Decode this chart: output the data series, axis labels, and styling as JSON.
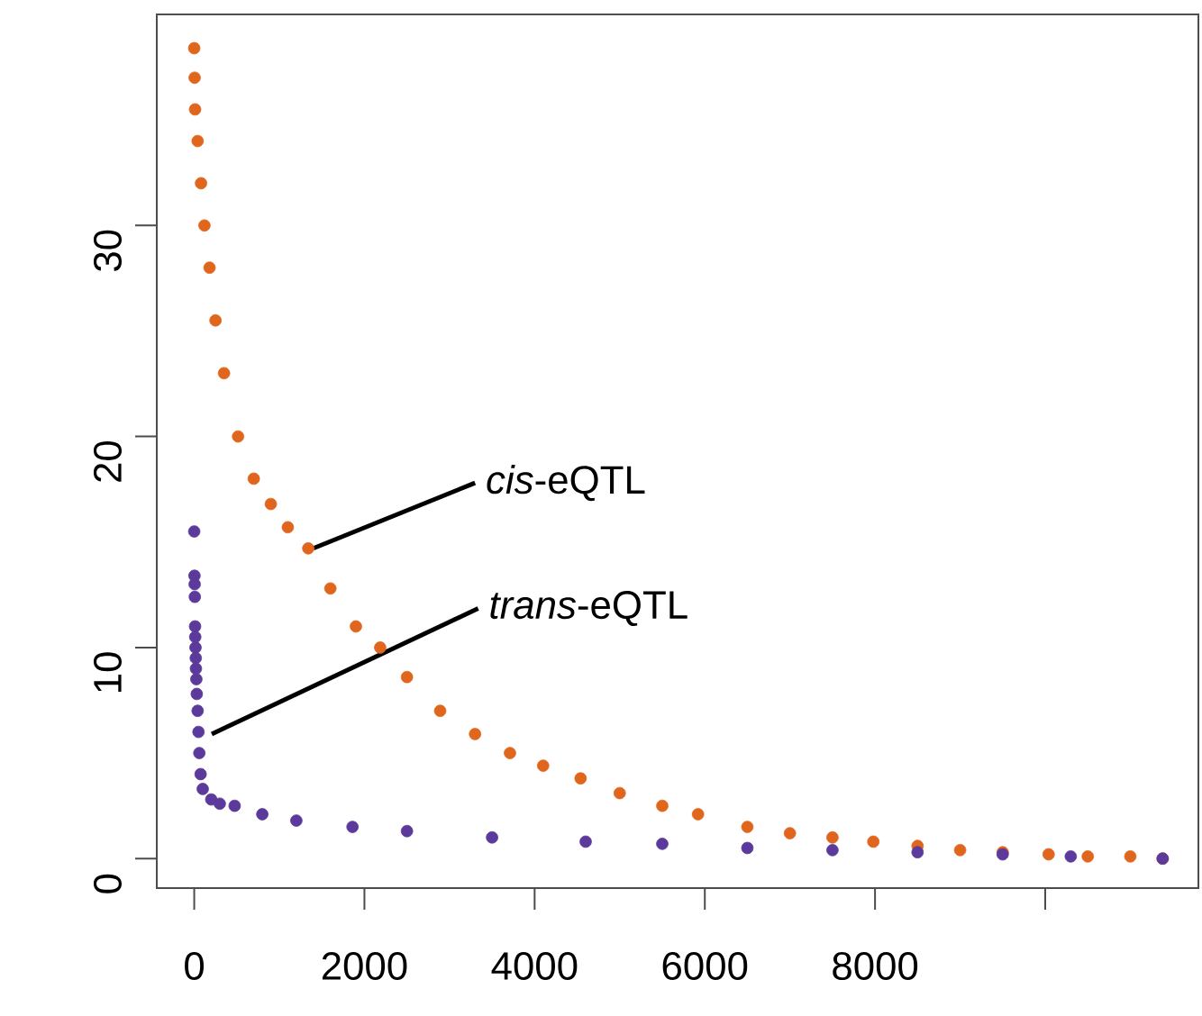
{
  "chart_data": {
    "type": "scatter",
    "marker": "circle",
    "xlim": [
      -440,
      11800
    ],
    "ylim": [
      -1.4,
      40
    ],
    "xticks": [
      0,
      2000,
      4000,
      6000,
      8000,
      {
        "value": 10000,
        "label": null
      }
    ],
    "yticks": [
      0,
      10,
      20,
      30
    ],
    "series": [
      {
        "color": "#e0661e",
        "x": [
          0,
          5,
          10,
          40,
          80,
          120,
          180,
          250,
          350,
          515,
          700,
          900,
          1100,
          1340,
          1600,
          1900,
          2185,
          2500,
          2890,
          3300,
          3710,
          4100,
          4540,
          5000,
          5500,
          5920,
          6500,
          7000,
          7500,
          7980,
          8500,
          9000,
          9500,
          10040,
          10500,
          11000,
          11380
        ],
        "values": [
          38.4,
          37,
          35.5,
          34,
          32,
          30,
          28,
          25.5,
          23,
          20,
          18,
          16.8,
          15.7,
          14.7,
          12.8,
          11,
          10,
          8.6,
          7,
          5.9,
          5,
          4.4,
          3.8,
          3.1,
          2.5,
          2.1,
          1.5,
          1.2,
          1,
          0.8,
          0.6,
          0.4,
          0.3,
          0.2,
          0.1,
          0.1,
          0
        ]
      },
      {
        "color": "#5b3a9b",
        "x": [
          0,
          3,
          5,
          7,
          10,
          12,
          15,
          18,
          20,
          25,
          30,
          40,
          50,
          60,
          75,
          100,
          200,
          300,
          475,
          800,
          1200,
          1860,
          2500,
          3500,
          4600,
          5500,
          6500,
          7500,
          8500,
          9500,
          10300,
          11380
        ],
        "values": [
          15.5,
          13.4,
          13.0,
          12.4,
          11.0,
          10.5,
          10,
          9.5,
          9,
          8.5,
          7.8,
          7,
          6,
          5,
          4,
          3.3,
          2.8,
          2.6,
          2.5,
          2.1,
          1.8,
          1.5,
          1.3,
          1.0,
          0.8,
          0.7,
          0.5,
          0.4,
          0.3,
          0.2,
          0.1,
          0
        ]
      }
    ],
    "annotations": [
      {
        "text": "*cis*-eQTL",
        "x": 1400,
        "y": 14.7
      },
      {
        "text": "*trans*-eQTL",
        "x": 206,
        "y": 5.9
      }
    ]
  }
}
